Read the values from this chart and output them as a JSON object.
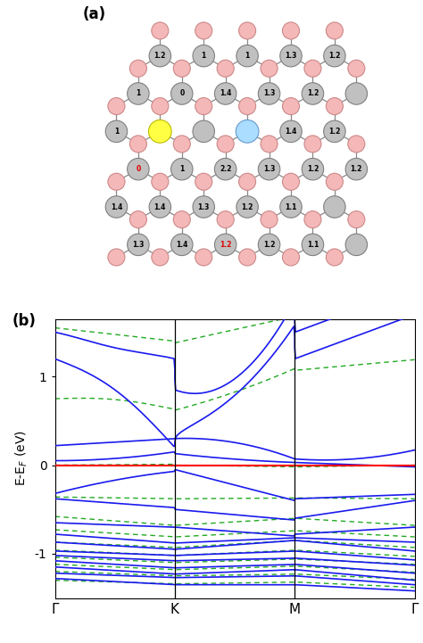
{
  "panel_a_label": "(a)",
  "panel_b_label": "(b)",
  "fig_width": 4.74,
  "fig_height": 7.21,
  "atom_gray_face": "#c0c0c0",
  "atom_gray_edge": "#808080",
  "atom_pink_face": "#f5b8b8",
  "atom_pink_edge": "#cc8888",
  "atom_yellow_face": "#ffff44",
  "atom_yellow_edge": "#bbbb00",
  "atom_cyan_face": "#aaddff",
  "atom_cyan_edge": "#6699cc",
  "bond_color": "#888888",
  "bond_color_pink": "#cc9999",
  "text_black": "#000000",
  "text_red": "#dd0000",
  "ylabel_b": "E-E$_F$ (eV)",
  "xtick_labels": [
    "Γ",
    "K",
    "M",
    "Γ"
  ],
  "ylim_b": [
    -1.5,
    1.65
  ],
  "ytick_vals": [
    -1,
    0,
    1
  ],
  "line_blue": "#1a1aee",
  "line_green_dashed": "#22aa22",
  "fermi_red": "#ff0000"
}
